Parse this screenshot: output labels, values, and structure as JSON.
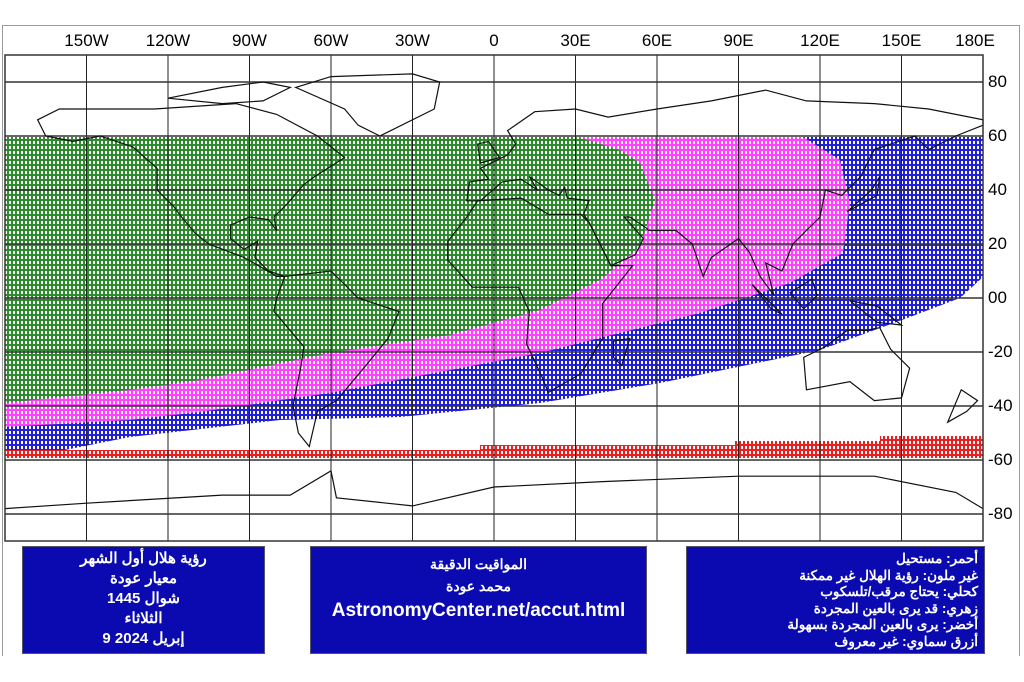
{
  "map": {
    "longitude_labels": [
      "150W",
      "120W",
      "90W",
      "60W",
      "30W",
      "0",
      "30E",
      "60E",
      "90E",
      "120E",
      "150E",
      "180E"
    ],
    "latitude_labels": [
      "80",
      "60",
      "40",
      "20",
      "00",
      "-20",
      "-40",
      "-60",
      "-80"
    ],
    "zone_colors": {
      "easy_naked_eye": "#2e8b2e",
      "may_be_naked_eye": "#ff40ff",
      "needs_telescope": "#2020d8",
      "impossible": "#e82020"
    }
  },
  "info_box": {
    "lines": [
      "رؤية هلال أول الشهر",
      "معيار عودة",
      "شوال 1445",
      "الثلاثاء",
      "9 إبريل 2024"
    ]
  },
  "credit_box": {
    "title": "المواقيت الدقيقة",
    "author": "محمد عودة",
    "url": "AstronomyCenter.net/accut.html"
  },
  "legend_box": {
    "lines": [
      "أحمر: مستحيل",
      "غير ملون: رؤية الهلال غير ممكنة",
      "كحلي: يحتاج مرقب/تلسكوب",
      "زهري: قد يرى بالعين المجردة",
      "أخضر: يرى بالعين المجردة بسهولة",
      "أزرق سماوي: غير معروف"
    ]
  }
}
